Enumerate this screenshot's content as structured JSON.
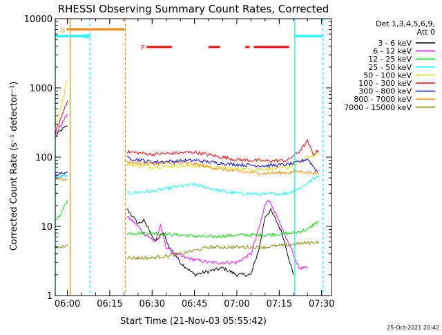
{
  "chart_data": {
    "type": "line",
    "title": "RHESSI Observing Summary Count Rates, Corrected",
    "xlabel": "Start Time (21-Nov-03 05:55:42)",
    "ylabel": "Corrected Count Rate (s⁻¹ detector⁻¹)",
    "y_scale": "log",
    "ylim": [
      1,
      10000
    ],
    "xlim": [
      "05:55:42",
      "07:33:30"
    ],
    "x_ticks": [
      "06:00",
      "06:15",
      "06:30",
      "06:45",
      "07:00",
      "07:15",
      "07:30"
    ],
    "y_ticks": [
      "1",
      "10",
      "100",
      "1000",
      "10000"
    ],
    "grid": false,
    "legend_placement": "right",
    "legend_header": [
      "Det 1,3,4,5,6,9,",
      "Att 0"
    ],
    "timestamp": "25-Oct-2021 20:42",
    "series": [
      {
        "name": "3 - 6 keV",
        "color": "#000000",
        "segments": [
          [
            [
              "05:55:42",
              198
            ],
            [
              "05:58:00",
              250
            ],
            [
              "06:00:00",
              280
            ]
          ],
          [
            [
              "06:21:00",
              18
            ],
            [
              "06:23:00",
              14
            ],
            [
              "06:25:00",
              11
            ],
            [
              "06:27:00",
              12
            ],
            [
              "06:29:00",
              9
            ],
            [
              "06:31:00",
              6
            ],
            [
              "06:34:00",
              8
            ],
            [
              "06:36:00",
              5
            ],
            [
              "06:38:00",
              4
            ],
            [
              "06:40:00",
              3
            ],
            [
              "06:45:00",
              2
            ],
            [
              "06:55:00",
              2.5
            ],
            [
              "07:00:00",
              2
            ],
            [
              "07:05:00",
              2
            ],
            [
              "07:08:00",
              5
            ],
            [
              "07:10:00",
              14
            ],
            [
              "07:12:00",
              17
            ],
            [
              "07:14:00",
              12
            ],
            [
              "07:16:00",
              8
            ],
            [
              "07:18:00",
              4
            ],
            [
              "07:20:00",
              2
            ]
          ]
        ]
      },
      {
        "name": "6 - 12 keV",
        "color": "#ff00ff",
        "segments": [
          [
            [
              "05:55:42",
              210
            ],
            [
              "05:58:00",
              300
            ],
            [
              "06:00:00",
              420
            ]
          ],
          [
            [
              "06:21:00",
              14
            ],
            [
              "06:23:00",
              12
            ],
            [
              "06:25:00",
              10
            ],
            [
              "06:27:00",
              8
            ],
            [
              "06:29:00",
              7
            ],
            [
              "06:31:00",
              6
            ],
            [
              "06:33:00",
              10
            ],
            [
              "06:35:00",
              5
            ],
            [
              "06:38:00",
              4
            ],
            [
              "06:42:00",
              3.5
            ],
            [
              "06:50:00",
              3
            ],
            [
              "07:00:00",
              3
            ],
            [
              "07:05:00",
              4
            ],
            [
              "07:08:00",
              10
            ],
            [
              "07:10:00",
              20
            ],
            [
              "07:11:00",
              25
            ],
            [
              "07:13:00",
              18
            ],
            [
              "07:16:00",
              9
            ],
            [
              "07:19:00",
              5
            ],
            [
              "07:22:00",
              2.5
            ],
            [
              "07:25:00",
              2.5
            ]
          ]
        ]
      },
      {
        "name": "12 - 25 keV",
        "color": "#00dd00",
        "segments": [
          [
            [
              "05:55:42",
              12
            ],
            [
              "05:58:00",
              16
            ],
            [
              "06:00:00",
              24
            ]
          ],
          [
            [
              "06:21:00",
              8
            ],
            [
              "06:30:00",
              8
            ],
            [
              "06:40:00",
              7.5
            ],
            [
              "06:50:00",
              7
            ],
            [
              "07:00:00",
              7.5
            ],
            [
              "07:10:00",
              7.5
            ],
            [
              "07:20:00",
              8
            ],
            [
              "07:25:00",
              9
            ],
            [
              "07:29:00",
              12
            ]
          ]
        ]
      },
      {
        "name": "25 - 50 keV",
        "color": "#00ffff",
        "segments": [
          [
            [
              "05:55:42",
              50
            ],
            [
              "05:58:00",
              52
            ],
            [
              "06:00:00",
              55
            ]
          ],
          [
            [
              "06:21:00",
              30
            ],
            [
              "06:25:00",
              31
            ],
            [
              "06:30:00",
              32
            ],
            [
              "06:40:00",
              38
            ],
            [
              "06:45:00",
              40
            ],
            [
              "06:50:00",
              36
            ],
            [
              "06:55:00",
              32
            ],
            [
              "07:00:00",
              30
            ],
            [
              "07:10:00",
              29
            ],
            [
              "07:18:00",
              30
            ],
            [
              "07:22:00",
              35
            ],
            [
              "07:25:00",
              42
            ],
            [
              "07:29:00",
              55
            ]
          ]
        ]
      },
      {
        "name": "50 - 100 keV",
        "color": "#dddd00",
        "segments": [
          [
            [
              "05:55:42",
              300
            ],
            [
              "05:58:00",
              600
            ],
            [
              "06:00:00",
              1300
            ]
          ],
          [
            [
              "06:21:00",
              78
            ],
            [
              "06:25:00",
              75
            ],
            [
              "06:30:00",
              72
            ],
            [
              "06:40:00",
              74
            ],
            [
              "06:45:00",
              75
            ],
            [
              "06:50:00",
              72
            ],
            [
              "07:00:00",
              68
            ],
            [
              "07:10:00",
              67
            ],
            [
              "07:18:00",
              70
            ],
            [
              "07:22:00",
              85
            ],
            [
              "07:25:00",
              100
            ],
            [
              "07:29:00",
              112
            ]
          ]
        ]
      },
      {
        "name": "100 - 300 keV",
        "color": "#ff0000",
        "segments": [
          [
            [
              "05:55:42",
              220
            ],
            [
              "05:58:00",
              400
            ],
            [
              "06:00:00",
              650
            ]
          ],
          [
            [
              "06:21:00",
              120
            ],
            [
              "06:25:00",
              115
            ],
            [
              "06:30:00",
              110
            ],
            [
              "06:40:00",
              115
            ],
            [
              "06:45:00",
              118
            ],
            [
              "06:50:00",
              108
            ],
            [
              "07:00:00",
              92
            ],
            [
              "07:10:00",
              88
            ],
            [
              "07:18:00",
              90
            ],
            [
              "07:22:00",
              120
            ],
            [
              "07:25:00",
              170
            ],
            [
              "07:27:00",
              110
            ],
            [
              "07:29:00",
              125
            ]
          ]
        ]
      },
      {
        "name": "300 - 800 keV",
        "color": "#0000ff",
        "segments": [
          [
            [
              "05:55:42",
              55
            ],
            [
              "05:58:00",
              58
            ],
            [
              "06:00:00",
              62
            ]
          ],
          [
            [
              "06:21:00",
              98
            ],
            [
              "06:25:00",
              92
            ],
            [
              "06:30:00",
              85
            ],
            [
              "06:40:00",
              88
            ],
            [
              "06:45:00",
              90
            ],
            [
              "06:50:00",
              85
            ],
            [
              "07:00:00",
              78
            ],
            [
              "07:10:00",
              75
            ],
            [
              "07:18:00",
              78
            ],
            [
              "07:22:00",
              85
            ],
            [
              "07:25:00",
              95
            ],
            [
              "07:29:00",
              58
            ]
          ]
        ]
      },
      {
        "name": "800 - 7000 keV",
        "color": "#ff8800",
        "segments": [
          [
            [
              "05:55:42",
              50
            ],
            [
              "05:58:00",
              48
            ],
            [
              "06:00:00",
              47
            ]
          ],
          [
            [
              "06:21:00",
              85
            ],
            [
              "06:25:00",
              82
            ],
            [
              "06:30:00",
              80
            ],
            [
              "06:40:00",
              82
            ],
            [
              "06:45:00",
              80
            ],
            [
              "06:50:00",
              72
            ],
            [
              "07:00:00",
              62
            ],
            [
              "07:10:00",
              58
            ],
            [
              "07:18:00",
              60
            ],
            [
              "07:22:00",
              62
            ],
            [
              "07:29:00",
              58
            ]
          ]
        ]
      },
      {
        "name": "7000 - 15000 keV",
        "color": "#888800",
        "segments": [
          [
            [
              "05:55:42",
              5
            ],
            [
              "05:58:00",
              5
            ],
            [
              "06:00:00",
              5.5
            ]
          ],
          [
            [
              "06:21:00",
              3.5
            ],
            [
              "06:30:00",
              3.5
            ],
            [
              "06:40:00",
              4
            ],
            [
              "06:50:00",
              5
            ],
            [
              "07:00:00",
              5
            ],
            [
              "07:10:00",
              5
            ],
            [
              "07:20:00",
              5.5
            ],
            [
              "07:29:00",
              6
            ]
          ]
        ]
      }
    ],
    "vertical_markers": [
      {
        "time": "05:55:42",
        "color": "#00ffff",
        "style": "solid"
      },
      {
        "time": "06:01:00",
        "color": "#ff8800",
        "style": "solid"
      },
      {
        "time": "06:08:00",
        "color": "#00ffff",
        "style": "dashed"
      },
      {
        "time": "06:20:30",
        "color": "#ff8800",
        "style": "dashed"
      },
      {
        "time": "07:20:30",
        "color": "#00ffff",
        "style": "solid"
      },
      {
        "time": "07:30:30",
        "color": "#00ffff",
        "style": "dashed"
      }
    ],
    "flag_bars": [
      {
        "label": "S",
        "color": "#ff8800",
        "y": 7000,
        "ranges": [
          [
            "05:59:40",
            "06:20:30"
          ]
        ]
      },
      {
        "label": "N",
        "color": "#00ffff",
        "y": 5600,
        "ranges": [
          [
            "05:55:42",
            "06:08:00"
          ],
          [
            "07:20:30",
            "07:30:30"
          ]
        ]
      },
      {
        "label": "F",
        "color": "#ff0000",
        "y": 3900,
        "ranges": [
          [
            "06:28:00",
            "06:37:00"
          ],
          [
            "06:50:00",
            "06:54:00"
          ],
          [
            "07:03:00",
            "07:04:30"
          ],
          [
            "07:06:00",
            "07:18:30"
          ]
        ]
      }
    ]
  }
}
